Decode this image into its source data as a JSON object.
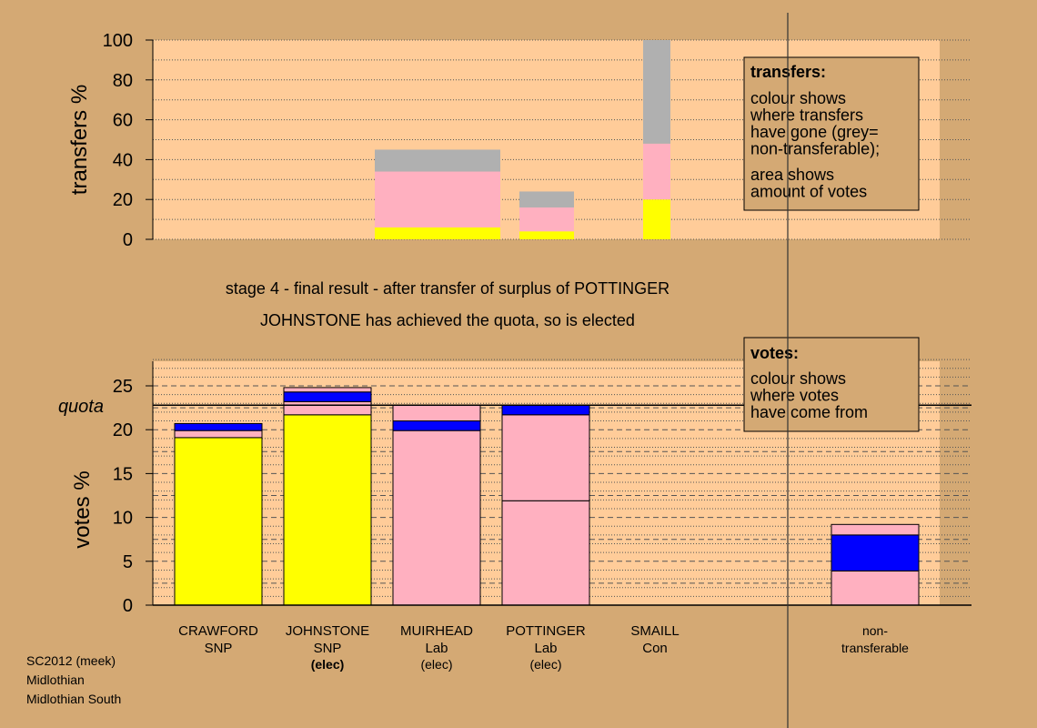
{
  "colors": {
    "background": "#d4a974",
    "plot_area": "#ffcc99",
    "snp": "#ffff00",
    "lab": "#ffb0c0",
    "con": "#0000ff",
    "non_transferable": "#b0b0b0"
  },
  "headings": {
    "stage": "stage 4 - final result - after transfer of surplus of POTTINGER",
    "elected": "JOHNSTONE has achieved the quota, so is elected"
  },
  "legend_transfers": {
    "title": "transfers:",
    "lines_a": [
      "colour shows",
      "where transfers",
      "have gone (grey=",
      "non-transferable);"
    ],
    "lines_b": [
      "area shows",
      "amount of votes"
    ]
  },
  "legend_votes": {
    "title": "votes:",
    "lines": [
      "colour shows",
      "where votes",
      "have come from"
    ]
  },
  "footer": {
    "lines": [
      "SC2012 (meek)",
      "Midlothian",
      "Midlothian South"
    ]
  },
  "chart_data": [
    {
      "id": "transfers",
      "type": "bar",
      "ylabel": "transfers %",
      "ylim": [
        0,
        100
      ],
      "yticks": [
        0,
        20,
        40,
        60,
        80,
        100
      ],
      "grid": "dotted",
      "legend": "top-right",
      "stacks": [
        {
          "slot": 3,
          "width": 2,
          "segments": [
            {
              "color": "snp",
              "value": 6
            },
            {
              "color": "lab",
              "value": 28
            },
            {
              "color": "non_transferable",
              "value": 11
            }
          ]
        },
        {
          "slot": 4.5,
          "width": 1,
          "segments": [
            {
              "color": "snp",
              "value": 4
            },
            {
              "color": "lab",
              "value": 12
            },
            {
              "color": "non_transferable",
              "value": 8
            }
          ]
        },
        {
          "slot": 5.95,
          "width": 0.5,
          "segments": [
            {
              "color": "snp",
              "value": 20
            },
            {
              "color": "lab",
              "value": 28
            },
            {
              "color": "non_transferable",
              "value": 52
            }
          ]
        }
      ]
    },
    {
      "id": "votes",
      "type": "bar",
      "ylabel": "votes %",
      "ylim": [
        0,
        28
      ],
      "yticks": [
        0,
        5,
        10,
        15,
        20,
        25
      ],
      "quota": 22.8,
      "quota_label": "quota",
      "grid": "dotted",
      "legend": "top-right",
      "categories": [
        {
          "name": "CRAWFORD",
          "party": "SNP",
          "status": ""
        },
        {
          "name": "JOHNSTONE",
          "party": "SNP",
          "status": "(elec)"
        },
        {
          "name": "MUIRHEAD",
          "party": "Lab",
          "status": "(elec)"
        },
        {
          "name": "POTTINGER",
          "party": "Lab",
          "status": "(elec)"
        },
        {
          "name": "SMAILL",
          "party": "Con",
          "status": ""
        },
        {
          "name": "non-",
          "party": "transferable",
          "status": ""
        }
      ],
      "stacks": [
        [
          {
            "color": "snp",
            "value": 19.1
          },
          {
            "color": "lab",
            "value": 0.8
          },
          {
            "color": "con",
            "value": 0.8
          }
        ],
        [
          {
            "color": "snp",
            "value": 21.7
          },
          {
            "color": "lab",
            "value": 1.5
          },
          {
            "color": "con",
            "value": 1.1
          },
          {
            "color": "lab",
            "value": 0.5
          }
        ],
        [
          {
            "color": "lab",
            "value": 19.9
          },
          {
            "color": "con",
            "value": 1.1
          },
          {
            "color": "lab",
            "value": 1.8
          }
        ],
        [
          {
            "color": "lab",
            "value": 11.9
          },
          {
            "color": "lab",
            "value": 9.8
          },
          {
            "color": "con",
            "value": 1.1
          }
        ],
        [],
        [
          {
            "color": "lab",
            "value": 3.9
          },
          {
            "color": "con",
            "value": 4.1
          },
          {
            "color": "lab",
            "value": 1.2
          }
        ]
      ]
    }
  ]
}
